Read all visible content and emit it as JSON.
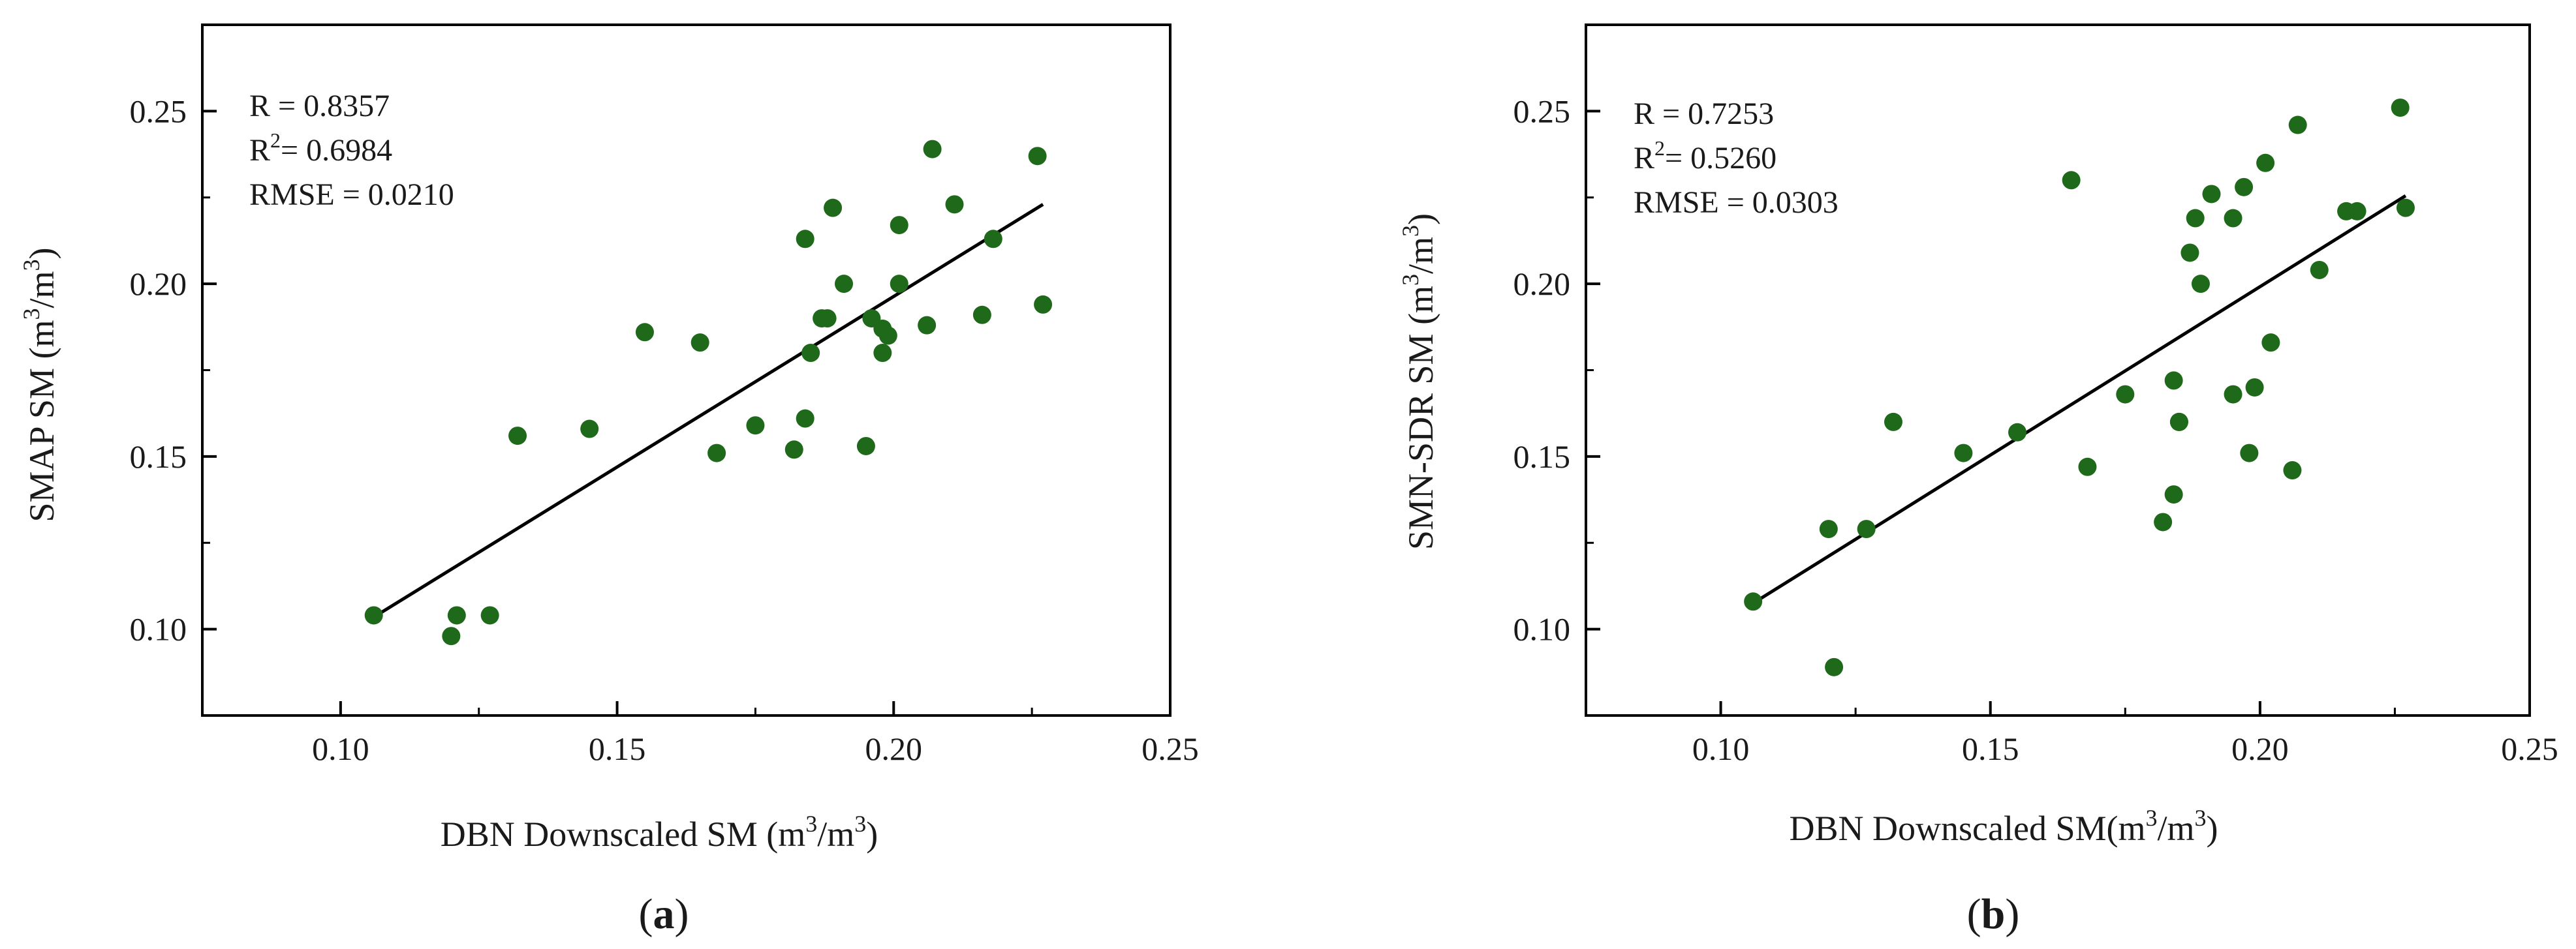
{
  "figure": {
    "colors": {
      "marker": "#1f6a1a",
      "line": "#000000",
      "axes": "#000000",
      "text": "#1a1a1a"
    }
  },
  "chart_data": [
    {
      "type": "scatter",
      "panel_label": "a",
      "title": "",
      "xlabel": {
        "main": "DBN Downscaled SM (m",
        "sup1": "3",
        "mid": "/m",
        "sup2": "3",
        "end": ")"
      },
      "ylabel": {
        "main": "SMAP SM (m",
        "sup1": "3",
        "mid": "/m",
        "sup2": "3",
        "end": ")"
      },
      "xlim": [
        0.075,
        0.25
      ],
      "ylim": [
        0.075,
        0.275
      ],
      "xticks": [
        "0.10",
        "0.15",
        "0.20",
        "0.25"
      ],
      "yticks": [
        "0.10",
        "0.15",
        "0.20",
        "0.25"
      ],
      "stats": {
        "r": "R = 0.8357",
        "r2_prefix": "R",
        "r2_sup": "2",
        "r2_value": "= 0.6984",
        "rmse": "RMSE = 0.0210"
      },
      "fit_line": {
        "x": [
          0.106,
          0.227
        ],
        "y": [
          0.1035,
          0.223
        ]
      },
      "x": [
        0.106,
        0.12,
        0.121,
        0.127,
        0.132,
        0.145,
        0.155,
        0.165,
        0.168,
        0.175,
        0.182,
        0.184,
        0.184,
        0.185,
        0.187,
        0.188,
        0.189,
        0.191,
        0.195,
        0.196,
        0.198,
        0.198,
        0.199,
        0.201,
        0.201,
        0.206,
        0.207,
        0.211,
        0.216,
        0.218,
        0.226,
        0.227
      ],
      "y": [
        0.104,
        0.098,
        0.104,
        0.104,
        0.156,
        0.158,
        0.186,
        0.183,
        0.151,
        0.159,
        0.152,
        0.161,
        0.213,
        0.18,
        0.19,
        0.19,
        0.222,
        0.2,
        0.153,
        0.19,
        0.18,
        0.187,
        0.185,
        0.217,
        0.2,
        0.188,
        0.239,
        0.223,
        0.191,
        0.213,
        0.237,
        0.194
      ]
    },
    {
      "type": "scatter",
      "panel_label": "b",
      "title": "",
      "xlabel": {
        "main": "DBN Downscaled SM(m",
        "sup1": "3",
        "mid": "/m",
        "sup2": "3",
        "end": ")"
      },
      "ylabel": {
        "main": "SMN-SDR SM (m",
        "sup1": "3",
        "mid": "/m",
        "sup2": "3",
        "end": ")"
      },
      "xlim": [
        0.075,
        0.25
      ],
      "ylim": [
        0.075,
        0.275
      ],
      "xticks": [
        "0.10",
        "0.15",
        "0.20",
        "0.25"
      ],
      "yticks": [
        "0.10",
        "0.15",
        "0.20",
        "0.25"
      ],
      "stats": {
        "r": "R = 0.7253",
        "r2_prefix": "R",
        "r2_sup": "2",
        "r2_value": "= 0.5260",
        "rmse": "RMSE = 0.0303"
      },
      "fit_line": {
        "x": [
          0.106,
          0.227
        ],
        "y": [
          0.1075,
          0.2255
        ]
      },
      "x": [
        0.106,
        0.12,
        0.121,
        0.127,
        0.132,
        0.145,
        0.155,
        0.165,
        0.168,
        0.175,
        0.182,
        0.184,
        0.184,
        0.185,
        0.185,
        0.187,
        0.188,
        0.189,
        0.191,
        0.195,
        0.195,
        0.197,
        0.198,
        0.199,
        0.201,
        0.202,
        0.206,
        0.207,
        0.211,
        0.216,
        0.218,
        0.226,
        0.227
      ],
      "y": [
        0.108,
        0.129,
        0.089,
        0.129,
        0.16,
        0.151,
        0.157,
        0.23,
        0.147,
        0.168,
        0.131,
        0.172,
        0.139,
        0.16,
        0.16,
        0.209,
        0.219,
        0.2,
        0.226,
        0.219,
        0.168,
        0.228,
        0.151,
        0.17,
        0.235,
        0.183,
        0.146,
        0.246,
        0.204,
        0.221,
        0.221,
        0.251,
        0.222
      ]
    }
  ]
}
